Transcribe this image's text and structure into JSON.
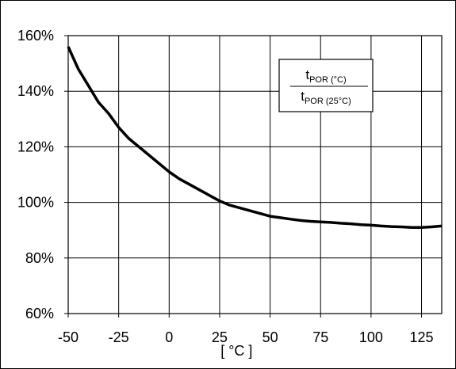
{
  "chart_data": {
    "type": "line",
    "title": "",
    "xlabel": "[ °C ]",
    "ylabel": "",
    "xlim": [
      -50,
      135
    ],
    "ylim": [
      60,
      160
    ],
    "x_ticks": [
      -50,
      -25,
      0,
      25,
      50,
      75,
      100,
      125
    ],
    "x_tick_labels": [
      "-50",
      "-25",
      "0",
      "25",
      "50",
      "75",
      "100",
      "125"
    ],
    "y_ticks": [
      60,
      80,
      100,
      120,
      140,
      160
    ],
    "y_tick_labels": [
      "60%",
      "80%",
      "100%",
      "120%",
      "140%",
      "160%"
    ],
    "grid": true,
    "series": [
      {
        "x": [
          -50,
          -45,
          -40,
          -35,
          -30,
          -25,
          -20,
          -15,
          -10,
          -5,
          0,
          5,
          10,
          15,
          20,
          25,
          30,
          35,
          40,
          45,
          50,
          55,
          60,
          65,
          70,
          75,
          80,
          85,
          90,
          95,
          100,
          105,
          110,
          115,
          120,
          125,
          130,
          135
        ],
        "values": [
          156,
          148,
          142,
          136,
          132,
          127,
          123,
          120,
          117,
          114,
          111,
          108.5,
          106.5,
          104.5,
          102.5,
          100.5,
          99,
          98,
          97,
          96,
          95,
          94.5,
          94,
          93.5,
          93.2,
          93,
          92.8,
          92.5,
          92.3,
          92,
          91.8,
          91.5,
          91.3,
          91.2,
          91,
          91,
          91.2,
          91.5
        ]
      }
    ],
    "legend": {
      "position": "top-right",
      "numerator_main": "t",
      "numerator_sub": "POR (°C)",
      "denominator_main": "t",
      "denominator_sub": "POR (25°C)"
    }
  },
  "colors": {
    "line": "#000000",
    "grid": "#000000",
    "background": "#ffffff"
  }
}
